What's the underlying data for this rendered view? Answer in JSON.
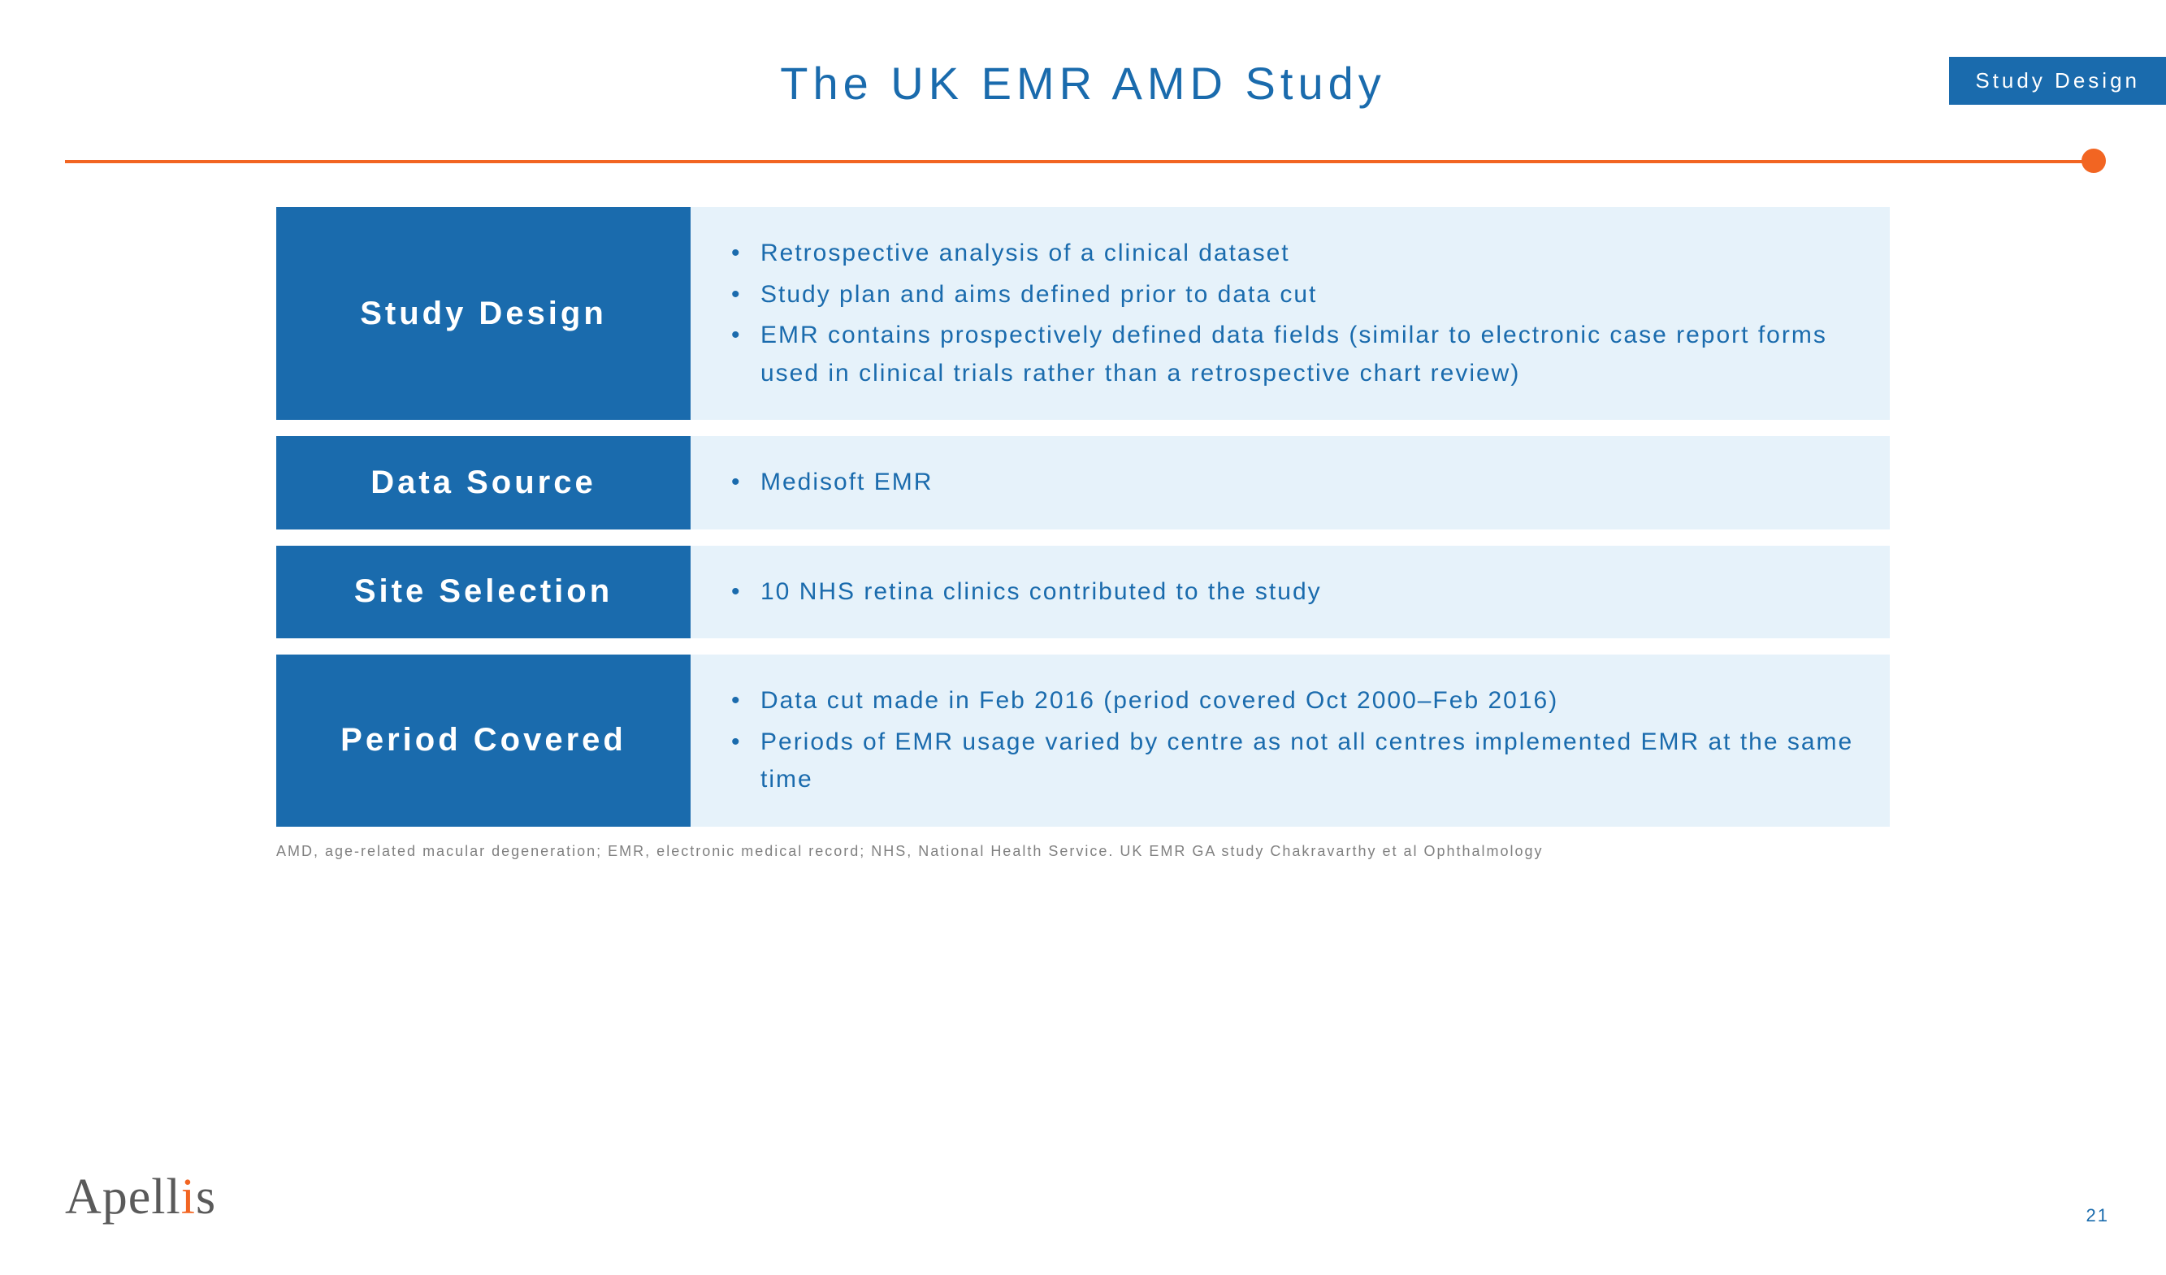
{
  "corner_tab": "Study Design",
  "title": "The UK EMR AMD Study",
  "colors": {
    "blue": "#1a6bad",
    "light_blue": "#e6f2fa",
    "orange": "#f26522",
    "gray_text": "#808080",
    "logo_gray": "#5a5a5a"
  },
  "rows": [
    {
      "label": "Study Design",
      "bullets": [
        "Retrospective analysis of a clinical dataset",
        "Study plan and aims defined prior to data cut",
        "EMR contains prospectively defined data fields (similar to electronic case report forms used in clinical trials rather than a retrospective chart review)"
      ]
    },
    {
      "label": "Data Source",
      "bullets": [
        "Medisoft EMR"
      ]
    },
    {
      "label": "Site Selection",
      "bullets": [
        "10 NHS retina clinics contributed to the study"
      ]
    },
    {
      "label": "Period Covered",
      "bullets": [
        "Data cut made in Feb 2016 (period covered Oct 2000–Feb 2016)",
        "Periods of EMR usage varied by centre as not all centres implemented EMR at the same time"
      ]
    }
  ],
  "footnote": "AMD, age-related macular degeneration; EMR, electronic medical record; NHS, National Health Service. UK EMR GA study Chakravarthy et al Ophthalmology",
  "logo_pre": "Apell",
  "logo_dot": "i",
  "logo_post": "s",
  "page_number": "21"
}
